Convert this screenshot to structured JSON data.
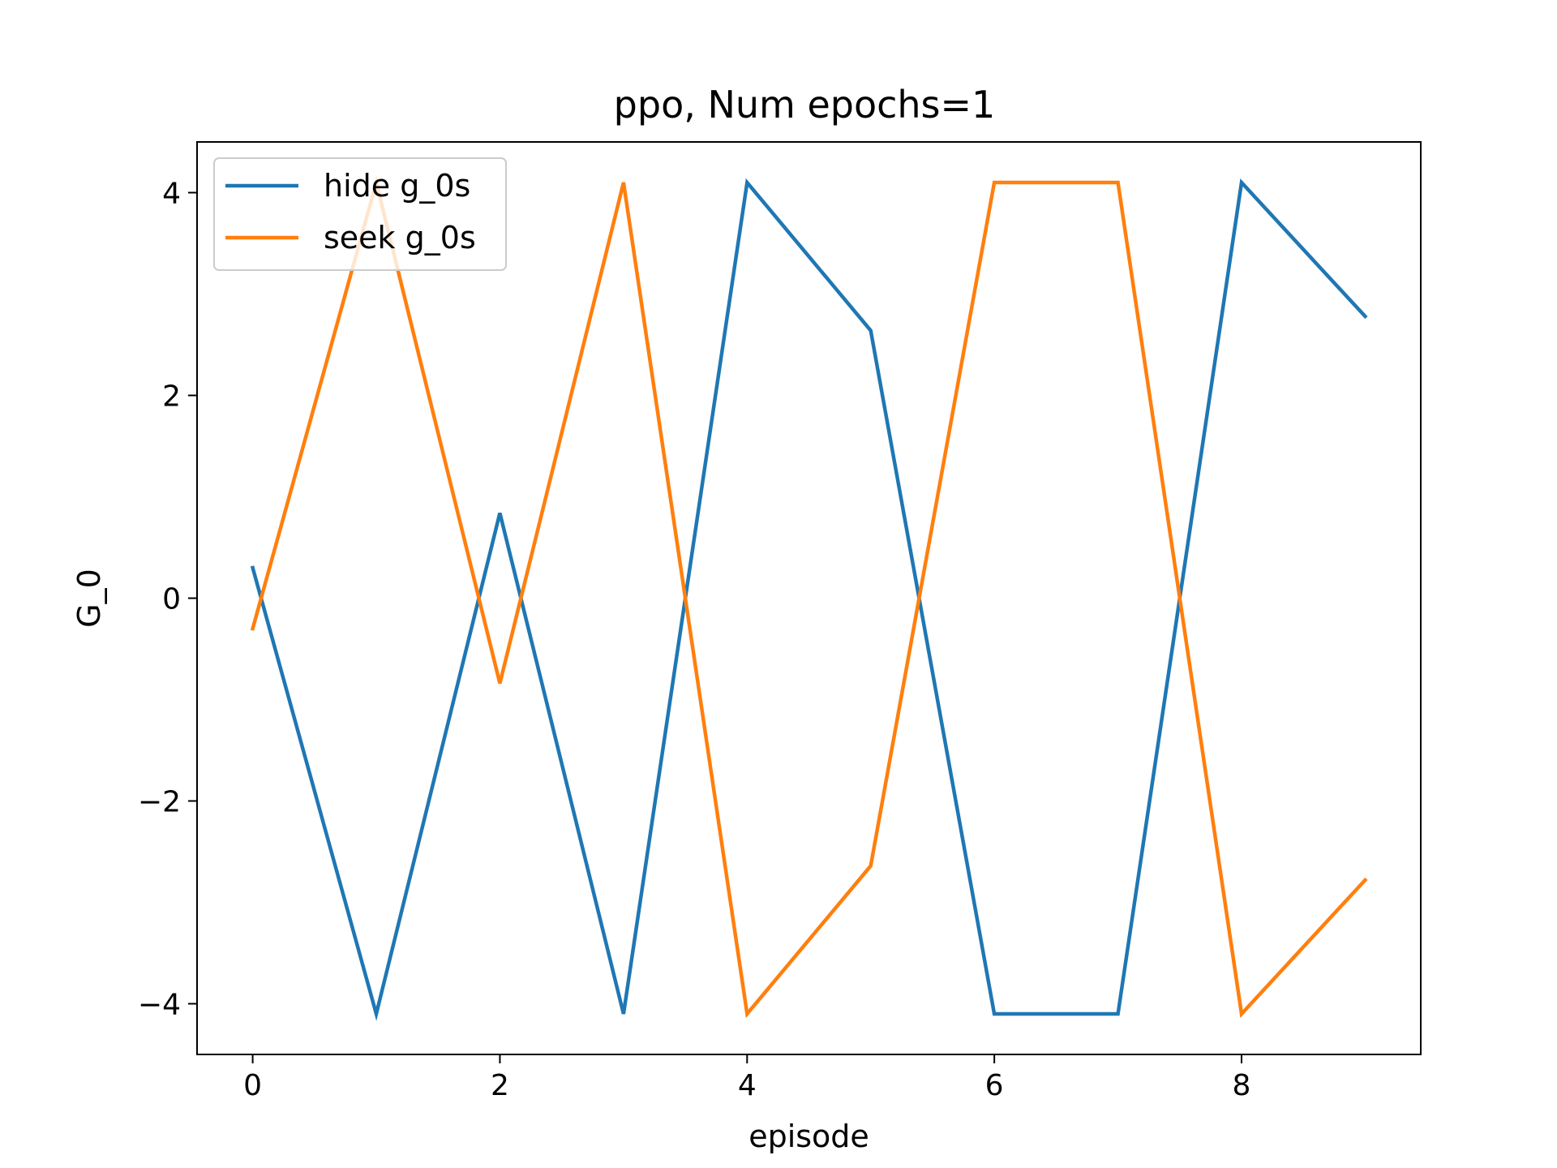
{
  "chart_data": {
    "type": "line",
    "title": "ppo, Num epochs=1",
    "xlabel": "episode",
    "ylabel": "G_0",
    "x": [
      0,
      1,
      2,
      3,
      4,
      5,
      6,
      7,
      8,
      9
    ],
    "xlim": [
      -0.45,
      9.45
    ],
    "ylim": [
      -4.5,
      4.5
    ],
    "xticks": [
      0,
      2,
      4,
      6,
      8
    ],
    "yticks": [
      -4,
      -2,
      0,
      2,
      4
    ],
    "xtick_labels": [
      "0",
      "2",
      "4",
      "6",
      "8"
    ],
    "ytick_labels": [
      "−4",
      "−2",
      "0",
      "2",
      "4"
    ],
    "grid": false,
    "legend_position": "upper-left",
    "series": [
      {
        "name": "hide g_0s",
        "color": "#1f77b4",
        "values": [
          0.3,
          -4.1,
          0.84,
          -4.1,
          4.1,
          2.64,
          -4.1,
          -4.1,
          4.1,
          2.78
        ]
      },
      {
        "name": "seek g_0s",
        "color": "#ff7f0e",
        "values": [
          -0.3,
          4.1,
          -0.84,
          4.1,
          -4.1,
          -2.64,
          4.1,
          4.1,
          -4.1,
          -2.78
        ]
      }
    ]
  }
}
